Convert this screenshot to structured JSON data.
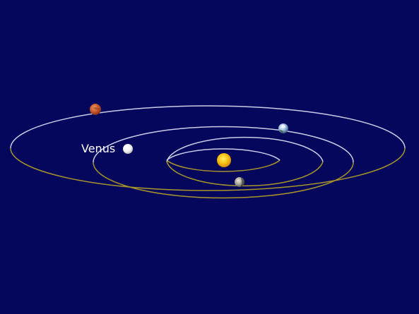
{
  "diagram": {
    "background_color": "#05075c",
    "orbit_colors": {
      "near_side": "#c8cde6",
      "far_side": "#a8962a"
    },
    "bodies": {
      "sun": {
        "icon": "sun-icon",
        "color": "#f2b80c"
      },
      "mercury": {
        "icon": "mercury-icon",
        "color": "#9a9a8e"
      },
      "venus": {
        "icon": "venus-icon",
        "color": "#f4f4f4",
        "label": "Venus"
      },
      "earth": {
        "icon": "earth-icon",
        "color": "#7f9fbf"
      },
      "mars": {
        "icon": "mars-icon",
        "color": "#c8552a"
      }
    }
  }
}
